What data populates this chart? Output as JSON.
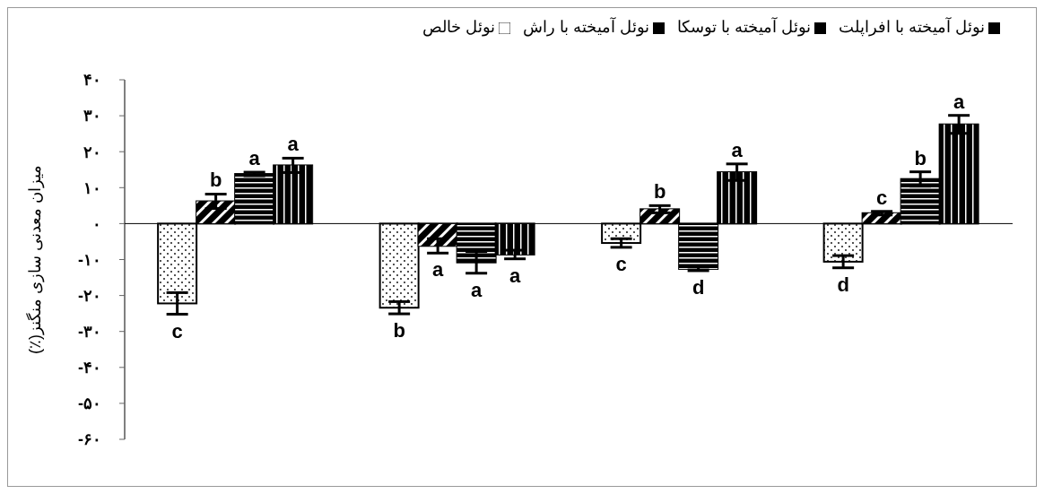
{
  "chart_data": {
    "type": "bar",
    "ylabel": "میزان معدنی سازی منگنز(٪)",
    "categories": [
      null,
      null,
      null,
      null
    ],
    "series": [
      {
        "name": "نوئل خالص",
        "color": "#ffffff",
        "values": [
          -22.2,
          -23.4,
          -5.4,
          -10.6
        ],
        "errors": [
          3,
          1.7,
          1.2,
          1.7
        ],
        "value_labels": [
          "c",
          "b",
          "c",
          "d"
        ]
      },
      {
        "name": "نوئل آمیخته با راش",
        "color": "#000000",
        "values": [
          6.2,
          -6.2,
          4.0,
          2.9
        ],
        "errors": [
          2,
          2,
          1,
          0.5
        ],
        "value_labels": [
          "b",
          "a",
          "b",
          "c"
        ]
      },
      {
        "name": "نوئل آمیخته با افراپلت",
        "color": "#000000",
        "values": [
          13.8,
          -10.8,
          -12.6,
          12.4
        ],
        "errors": [
          0.5,
          3,
          0.5,
          2
        ],
        "value_labels": [
          "a",
          "a",
          "d",
          "b"
        ]
      },
      {
        "name": "نوئل آمیخته با توسکا",
        "color": "#000000",
        "values": [
          16.2,
          -8.6,
          14.3,
          27.6
        ],
        "errors": [
          2,
          1.2,
          2.3,
          2.5
        ],
        "value_labels": [
          "a",
          "a",
          "a",
          "a"
        ]
      }
    ],
    "ylim": [
      -60,
      40
    ],
    "yticks": [
      {
        "value": -60,
        "label": "-۶۰"
      },
      {
        "value": -50,
        "label": "-۵۰"
      },
      {
        "value": -40,
        "label": "-۴۰"
      },
      {
        "value": -30,
        "label": "-۳۰"
      },
      {
        "value": -20,
        "label": "-۲۰"
      },
      {
        "value": -10,
        "label": "-۱۰"
      },
      {
        "value": 0,
        "label": "۰"
      },
      {
        "value": 10,
        "label": "۱۰"
      },
      {
        "value": 20,
        "label": "۲۰"
      },
      {
        "value": 30,
        "label": "۳۰"
      },
      {
        "value": 40,
        "label": "۴۰"
      }
    ],
    "ref_lines": [
      {
        "axis": "y",
        "value": 0,
        "color": "#000000"
      }
    ],
    "grid": false,
    "legend": "top"
  }
}
